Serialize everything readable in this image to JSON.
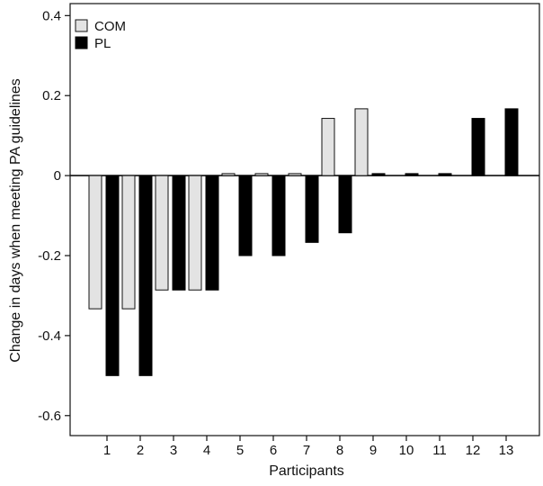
{
  "chart_data": {
    "type": "bar",
    "title": "",
    "xlabel": "Participants",
    "ylabel": "Change in days when meeting PA guidelines",
    "ylim": [
      -0.65,
      0.43
    ],
    "yticks": [
      "0.4",
      "0.2",
      "0",
      "-0.2",
      "-0.4",
      "-0.6"
    ],
    "ytick_values": [
      0.4,
      0.2,
      0,
      -0.2,
      -0.4,
      -0.6
    ],
    "categories": [
      "1",
      "2",
      "3",
      "4",
      "5",
      "6",
      "7",
      "8",
      "9",
      "10",
      "11",
      "12",
      "13"
    ],
    "series": [
      {
        "name": "COM",
        "color": "#e3e3e3",
        "values": [
          -0.333,
          -0.333,
          -0.286,
          -0.286,
          0.005,
          0.005,
          0.005,
          0.143,
          0.167,
          0,
          0,
          0,
          0
        ]
      },
      {
        "name": "PL",
        "color": "#000000",
        "values": [
          -0.5,
          -0.5,
          -0.286,
          -0.286,
          -0.2,
          -0.2,
          -0.167,
          -0.143,
          0.005,
          0.005,
          0.005,
          0.143,
          0.167
        ]
      }
    ],
    "grid": false,
    "legend_position": "top-left"
  }
}
